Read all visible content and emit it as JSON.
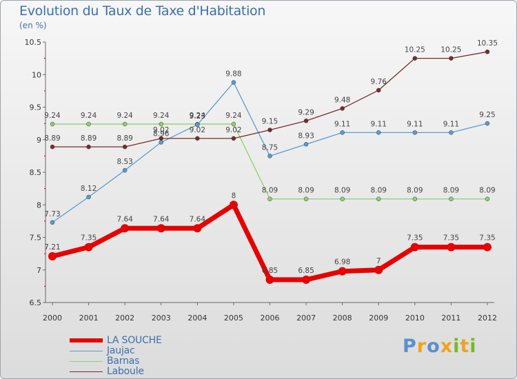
{
  "header": {
    "title": "Evolution du Taux de Taxe d'Habitation",
    "subtitle": "(en %)"
  },
  "logo": {
    "text": "Proxiti",
    "letters": [
      {
        "ch": "P",
        "color": "#5a8fd0"
      },
      {
        "ch": "r",
        "color": "#f0a21b"
      },
      {
        "ch": "o",
        "color": "#5a8fd0"
      },
      {
        "ch": "x",
        "color": "#f0a21b"
      },
      {
        "ch": "i",
        "color": "#78b72a"
      },
      {
        "ch": "t",
        "color": "#f0a21b"
      },
      {
        "ch": "i",
        "color": "#78b72a"
      }
    ]
  },
  "chart_data": {
    "type": "line",
    "title": "Evolution du Taux de Taxe d'Habitation",
    "ylabel": "(en %)",
    "xlabel": "",
    "categories": [
      "2000",
      "2001",
      "2002",
      "2003",
      "2004",
      "2005",
      "2006",
      "2007",
      "2008",
      "2009",
      "2010",
      "2011",
      "2012"
    ],
    "ylim": [
      6.5,
      10.5
    ],
    "yticks": [
      "6.5",
      "7",
      "7.5",
      "8",
      "8.5",
      "9",
      "9.5",
      "10",
      "10.5"
    ],
    "grid": false,
    "legend_position": "bottom-left",
    "series": [
      {
        "name": "LA SOUCHE",
        "color": "#e60000",
        "values": [
          7.21,
          7.35,
          7.64,
          7.64,
          7.64,
          8,
          6.85,
          6.85,
          6.98,
          7,
          7.35,
          7.35,
          7.35
        ],
        "labels": [
          "7.21",
          "7.35",
          "7.64",
          "7.64",
          "7.64",
          "8",
          "6.85",
          "6.85",
          "6.98",
          "7",
          "7.35",
          "7.35",
          "7.35"
        ]
      },
      {
        "name": "Jaujac",
        "color": "#5b9bd5",
        "values": [
          7.73,
          8.12,
          8.53,
          8.96,
          9.23,
          9.88,
          8.75,
          8.93,
          9.11,
          9.11,
          9.11,
          9.11,
          9.25
        ],
        "labels": [
          "7.73",
          "8.12",
          "8.53",
          "8.96",
          "9.23",
          "9.88",
          "8.75",
          "8.93",
          "9.11",
          "9.11",
          "9.11",
          "9.11",
          "9.25"
        ]
      },
      {
        "name": "Barnas",
        "color": "#8fd16a",
        "values": [
          9.24,
          9.24,
          9.24,
          9.24,
          9.24,
          9.24,
          8.09,
          8.09,
          8.09,
          8.09,
          8.09,
          8.09,
          8.09
        ],
        "labels": [
          "9.24",
          "9.24",
          "9.24",
          "9.24",
          "9.24",
          "9.24",
          "8.09",
          "8.09",
          "8.09",
          "8.09",
          "8.09",
          "8.09",
          "8.09"
        ]
      },
      {
        "name": "Laboule",
        "color": "#7b2a2a",
        "values": [
          8.89,
          8.89,
          8.89,
          9.02,
          9.02,
          9.02,
          9.15,
          9.29,
          9.48,
          9.76,
          10.25,
          10.25,
          10.35
        ],
        "labels": [
          "8.89",
          "8.89",
          "8.89",
          "9.02",
          "9.02",
          "9.02",
          "9.15",
          "9.29",
          "9.48",
          "9.76",
          "10.25",
          "10.25",
          "10.35"
        ]
      }
    ]
  }
}
